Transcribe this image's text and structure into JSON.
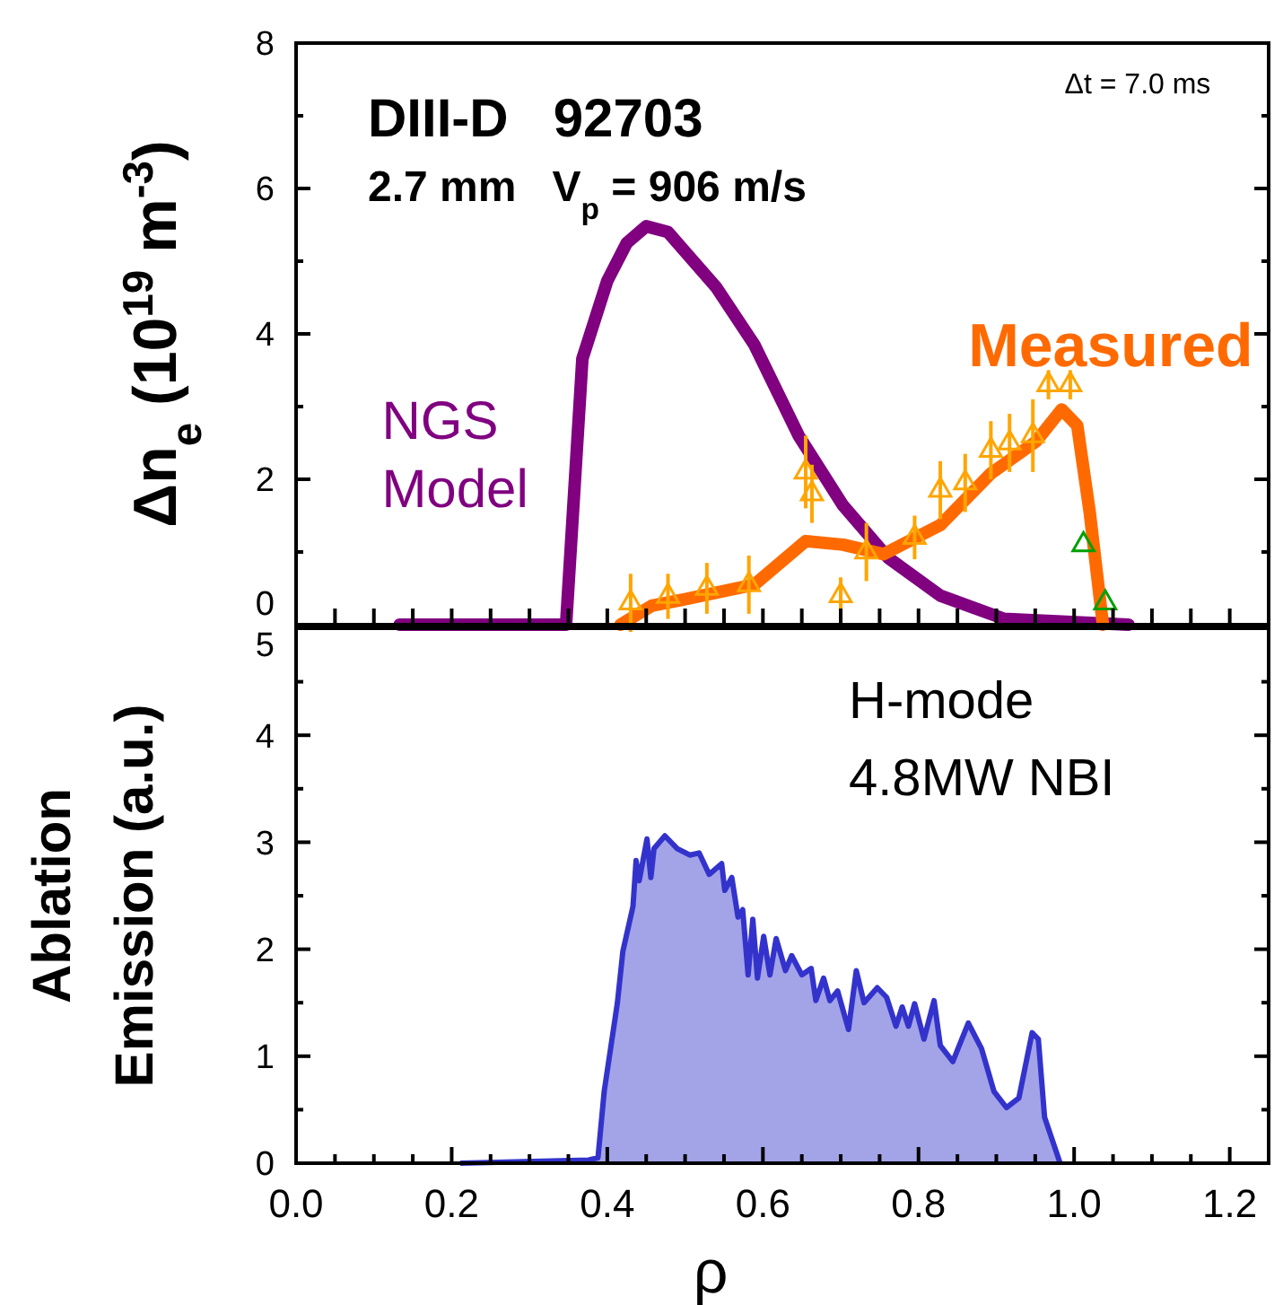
{
  "chart_data": [
    {
      "type": "line",
      "ylabel": "Δn$_{e}$ (10$^{19}$ m$^{-3}$)",
      "xlim": [
        0,
        1.25
      ],
      "ylim": [
        0,
        8
      ],
      "xticks": [
        {
          "value": 0,
          "label": null
        },
        {
          "value": 0.05,
          "label": null
        },
        {
          "value": 0.1,
          "label": null
        },
        {
          "value": 0.15,
          "label": null
        },
        {
          "value": 0.2,
          "label": null
        },
        {
          "value": 0.25,
          "label": null
        },
        {
          "value": 0.3,
          "label": null
        },
        {
          "value": 0.35,
          "label": null
        },
        {
          "value": 0.4,
          "label": null
        },
        {
          "value": 0.45,
          "label": null
        },
        {
          "value": 0.5,
          "label": null
        },
        {
          "value": 0.55,
          "label": null
        },
        {
          "value": 0.6,
          "label": null
        },
        {
          "value": 0.65,
          "label": null
        },
        {
          "value": 0.7,
          "label": null
        },
        {
          "value": 0.75,
          "label": null
        },
        {
          "value": 0.8,
          "label": null
        },
        {
          "value": 0.85,
          "label": null
        },
        {
          "value": 0.9,
          "label": null
        },
        {
          "value": 0.95,
          "label": null
        },
        {
          "value": 1.0,
          "label": null
        },
        {
          "value": 1.05,
          "label": null
        },
        {
          "value": 1.1,
          "label": null
        },
        {
          "value": 1.15,
          "label": null
        },
        {
          "value": 1.2,
          "label": null
        }
      ],
      "yticks": [
        0,
        {
          "value": 1,
          "label": null
        },
        2,
        {
          "value": 3,
          "label": null
        },
        4,
        {
          "value": 5,
          "label": null
        },
        6,
        {
          "value": 7,
          "label": null
        },
        8
      ],
      "tick_labels": "y",
      "grid": false,
      "legend": false,
      "annotations": [
        "DIII-D   92703",
        "2.7 mm   V$_{p}$ = 906 m/s",
        "Δt = 7.0 ms"
      ],
      "series": [
        {
          "name": "NGS\nModel",
          "color": "#800080",
          "marker": "none",
          "x": [
            0.133,
            0.347,
            0.368,
            0.4,
            0.425,
            0.45,
            0.478,
            0.54,
            0.589,
            0.646,
            0.703,
            0.761,
            0.828,
            0.91,
            1.07
          ],
          "values": [
            0,
            0,
            3.66,
            4.73,
            5.25,
            5.48,
            5.4,
            4.64,
            3.85,
            2.6,
            1.64,
            0.92,
            0.4,
            0.08,
            0
          ]
        },
        {
          "name": "Measured",
          "color": "#ff6a00",
          "marker": "none",
          "x": [
            0.417,
            0.457,
            0.5,
            0.589,
            0.655,
            0.703,
            0.755,
            0.828,
            0.893,
            0.951,
            0.984,
            1.004,
            1.02,
            1.037
          ],
          "values": [
            0,
            0.26,
            0.35,
            0.55,
            1.15,
            1.1,
            0.97,
            1.37,
            2.08,
            2.52,
            2.96,
            2.74,
            1.55,
            0
          ]
        },
        {
          "type": "scatter",
          "color": "#ffa500",
          "marker": "triangle",
          "x": [
            0.43,
            0.478,
            0.528,
            0.582,
            0.655,
            0.663,
            0.7,
            0.733,
            0.795,
            0.828,
            0.86,
            0.893,
            0.917,
            0.947,
            0.967,
            0.995
          ],
          "values": [
            0.3,
            0.39,
            0.5,
            0.55,
            2.1,
            1.8,
            0.4,
            1.0,
            1.2,
            1.85,
            1.95,
            2.4,
            2.5,
            2.6,
            3.3,
            3.3
          ],
          "errors": [
            0.4,
            0.31,
            0.35,
            0.4,
            0.5,
            0.4,
            0.25,
            0.4,
            0.3,
            0.4,
            0.4,
            0.4,
            0.4,
            0.5,
            0.2,
            0.2
          ]
        },
        {
          "type": "scatter",
          "color": "#00a000",
          "marker": "triangle",
          "x": [
            1.012,
            1.04
          ],
          "values": [
            1.1,
            0.3
          ]
        }
      ]
    },
    {
      "type": "area",
      "xlabel": "ρ",
      "ylabel": "Ablation\nEmission (a.u.)",
      "xlim": [
        0,
        1.25
      ],
      "ylim": [
        0,
        5
      ],
      "xticks": [
        {
          "value": 0,
          "label": "0.0"
        },
        {
          "value": 0.05,
          "label": null
        },
        {
          "value": 0.1,
          "label": null
        },
        {
          "value": 0.15,
          "label": null
        },
        {
          "value": 0.2,
          "label": "0.2"
        },
        {
          "value": 0.25,
          "label": null
        },
        {
          "value": 0.3,
          "label": null
        },
        {
          "value": 0.35,
          "label": null
        },
        {
          "value": 0.4,
          "label": "0.4"
        },
        {
          "value": 0.45,
          "label": null
        },
        {
          "value": 0.5,
          "label": null
        },
        {
          "value": 0.55,
          "label": null
        },
        {
          "value": 0.6,
          "label": "0.6"
        },
        {
          "value": 0.65,
          "label": null
        },
        {
          "value": 0.7,
          "label": null
        },
        {
          "value": 0.75,
          "label": null
        },
        {
          "value": 0.8,
          "label": "0.8"
        },
        {
          "value": 0.85,
          "label": null
        },
        {
          "value": 0.9,
          "label": null
        },
        {
          "value": 0.95,
          "label": null
        },
        {
          "value": 1.0,
          "label": "1.0"
        },
        {
          "value": 1.05,
          "label": null
        },
        {
          "value": 1.1,
          "label": null
        },
        {
          "value": 1.15,
          "label": null
        },
        {
          "value": 1.2,
          "label": "1.2"
        }
      ],
      "yticks": [
        0,
        {
          "value": 0.5,
          "label": null
        },
        1,
        {
          "value": 1.5,
          "label": null
        },
        2,
        {
          "value": 2.5,
          "label": null
        },
        3,
        {
          "value": 3.5,
          "label": null
        },
        4,
        {
          "value": 4.5,
          "label": null
        },
        5
      ],
      "grid": false,
      "legend": false,
      "annotations": [
        "H-mode",
        "4.8MW NBI"
      ],
      "series": [
        {
          "color": "#3333cc",
          "x": [
            0.211,
            0.376,
            0.388,
            0.396,
            0.413,
            0.42,
            0.433,
            0.437,
            0.441,
            0.451,
            0.456,
            0.46,
            0.474,
            0.49,
            0.506,
            0.518,
            0.531,
            0.547,
            0.551,
            0.56,
            0.568,
            0.574,
            0.581,
            0.587,
            0.593,
            0.601,
            0.609,
            0.617,
            0.629,
            0.637,
            0.65,
            0.662,
            0.668,
            0.678,
            0.686,
            0.696,
            0.71,
            0.72,
            0.73,
            0.747,
            0.759,
            0.771,
            0.779,
            0.787,
            0.795,
            0.807,
            0.82,
            0.828,
            0.844,
            0.864,
            0.881,
            0.897,
            0.913,
            0.929,
            0.946,
            0.954,
            0.962,
            0.982
          ],
          "values": [
            0,
            0.03,
            0.05,
            0.67,
            1.5,
            1.98,
            2.4,
            2.83,
            2.64,
            3.03,
            2.67,
            2.94,
            3.06,
            2.94,
            2.88,
            2.9,
            2.7,
            2.8,
            2.55,
            2.67,
            2.3,
            2.37,
            1.76,
            2.28,
            1.73,
            2.12,
            1.76,
            2.1,
            1.8,
            1.94,
            1.76,
            1.82,
            1.52,
            1.73,
            1.52,
            1.61,
            1.25,
            1.8,
            1.5,
            1.64,
            1.55,
            1.28,
            1.46,
            1.28,
            1.49,
            1.16,
            1.52,
            1.1,
            0.95,
            1.31,
            1.07,
            0.67,
            0.52,
            0.61,
            1.22,
            1.16,
            0.43,
            0
          ]
        }
      ]
    }
  ]
}
